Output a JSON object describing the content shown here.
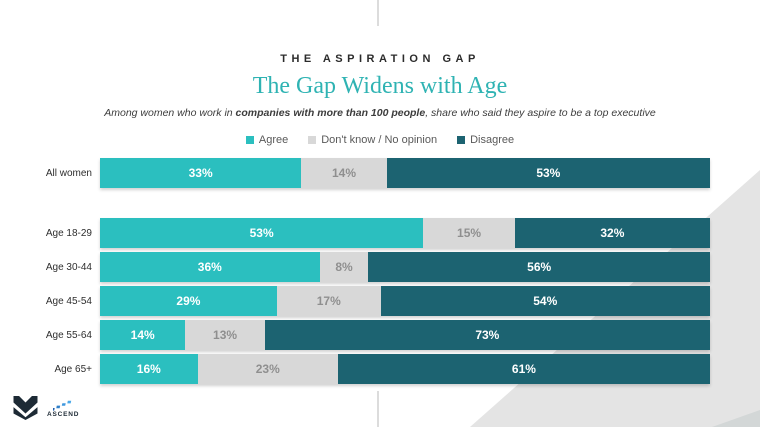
{
  "slide": {
    "kicker": "THE ASPIRATION GAP",
    "title": "The Gap Widens with Age",
    "subtitle_prefix": "Among women who work in ",
    "subtitle_bold": "companies with more than 100 people",
    "subtitle_suffix": ", share who said they aspire to be a top executive"
  },
  "legend": [
    {
      "label": "Agree",
      "color": "#2BBFBF"
    },
    {
      "label": "Don't know / No opinion",
      "color": "#D8D8D8"
    },
    {
      "label": "Disagree",
      "color": "#1C6371"
    }
  ],
  "chart_data": {
    "type": "bar",
    "orientation": "horizontal-stacked",
    "unit": "%",
    "title": "The Gap Widens with Age",
    "subtitle": "Among women who work in companies with more than 100 people, share who said they aspire to be a top executive",
    "xlim": [
      0,
      100
    ],
    "grid": false,
    "legend_position": "top-center",
    "value_labels": "inside-center",
    "categories": [
      "All women",
      "Age 18-29",
      "Age 30-44",
      "Age 45-54",
      "Age 55-64",
      "Age 65+"
    ],
    "series": [
      {
        "name": "Agree",
        "color": "#2BBFBF",
        "text_color": "#ffffff",
        "values": [
          33,
          53,
          36,
          29,
          14,
          16
        ]
      },
      {
        "name": "Don't know / No opinion",
        "color": "#D8D8D8",
        "text_color": "#8f8f8f",
        "values": [
          14,
          15,
          8,
          17,
          13,
          23
        ]
      },
      {
        "name": "Disagree",
        "color": "#1C6371",
        "text_color": "#ffffff",
        "values": [
          53,
          32,
          56,
          54,
          73,
          61
        ]
      }
    ]
  },
  "footer": {
    "brand": "ASCEND"
  },
  "colors": {
    "background": "#ffffff",
    "wedge_gray": "#e4e4e4",
    "wedge_corner_gray": "#d3d7d7",
    "tick_gray": "#dcdcdc",
    "title_teal": "#2FB3B3",
    "kicker_dark": "#2b2b2b",
    "brand_dark": "#1d2a35",
    "brand_blue_dark": "#1f5fae",
    "brand_blue_light": "#4aa8e8"
  }
}
